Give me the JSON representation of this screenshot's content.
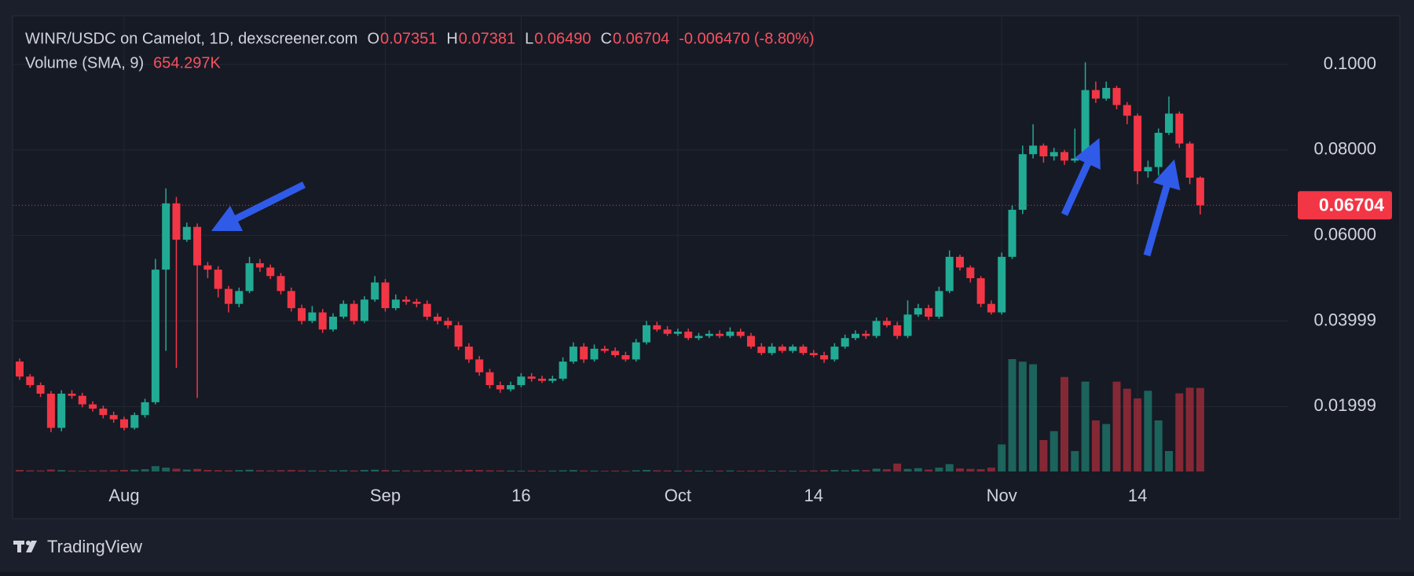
{
  "chart_data": {
    "type": "candlestick",
    "title": "WINR/USDC on Camelot, 1D, dexscreener.com",
    "readout": [
      {
        "key": "O",
        "text": "0.07351"
      },
      {
        "key": "H",
        "text": "0.07381"
      },
      {
        "key": "L",
        "text": "0.06490"
      },
      {
        "key": "C",
        "text": "0.06704"
      }
    ],
    "change_text": "-0.006470 (-8.80%)",
    "volume_title": "Volume (SMA, 9)",
    "volume_text": "654.297K",
    "categories": [
      null,
      null,
      null,
      null,
      null,
      null,
      null,
      null,
      null,
      null,
      "Aug",
      null,
      null,
      null,
      null,
      null,
      null,
      null,
      null,
      null,
      null,
      null,
      null,
      null,
      null,
      null,
      null,
      null,
      null,
      null,
      null,
      null,
      null,
      null,
      null,
      "Sep",
      null,
      null,
      null,
      null,
      null,
      null,
      null,
      null,
      null,
      null,
      null,
      null,
      "16",
      null,
      null,
      null,
      null,
      null,
      null,
      null,
      null,
      null,
      null,
      null,
      null,
      null,
      null,
      "Oct",
      null,
      null,
      null,
      null,
      null,
      null,
      null,
      null,
      null,
      null,
      null,
      null,
      "14",
      null,
      null,
      null,
      null,
      null,
      null,
      null,
      null,
      null,
      null,
      null,
      null,
      null,
      null,
      null,
      null,
      null,
      "Nov",
      null,
      null,
      null,
      null,
      null,
      null,
      null,
      null,
      null,
      null,
      null,
      null,
      "14",
      null,
      null,
      null,
      null,
      null,
      null
    ],
    "open": [
      0.0305,
      0.027,
      0.025,
      0.023,
      0.015,
      0.023,
      0.0225,
      0.0205,
      0.0195,
      0.018,
      0.017,
      0.015,
      0.018,
      0.021,
      0.052,
      0.0675,
      0.059,
      0.062,
      0.053,
      0.052,
      0.0475,
      0.044,
      0.047,
      0.0535,
      0.0525,
      0.0505,
      0.047,
      0.043,
      0.04,
      0.042,
      0.038,
      0.041,
      0.044,
      0.04,
      0.045,
      0.049,
      0.043,
      0.045,
      0.0445,
      0.044,
      0.041,
      0.04,
      0.039,
      0.034,
      0.031,
      0.028,
      0.025,
      0.024,
      0.025,
      0.027,
      0.0265,
      0.026,
      0.0265,
      0.0305,
      0.034,
      0.031,
      0.0335,
      0.033,
      0.032,
      0.031,
      0.035,
      0.039,
      0.038,
      0.037,
      0.0375,
      0.036,
      0.0365,
      0.037,
      0.0365,
      0.0375,
      0.0365,
      0.034,
      0.0325,
      0.034,
      0.033,
      0.034,
      0.0325,
      0.032,
      0.031,
      0.034,
      0.036,
      0.037,
      0.0365,
      0.04,
      0.039,
      0.0365,
      0.0415,
      0.043,
      0.041,
      0.047,
      0.055,
      0.0525,
      0.05,
      0.044,
      0.042,
      0.055,
      0.066,
      0.079,
      0.081,
      0.0785,
      0.0795,
      0.0775,
      0.078,
      0.094,
      0.092,
      0.0945,
      0.0905,
      0.088,
      0.075,
      0.076,
      0.084,
      0.0885,
      0.0815,
      0.07351
    ],
    "high": [
      0.0312,
      0.0276,
      0.0256,
      0.0236,
      0.0238,
      0.0238,
      0.0232,
      0.0212,
      0.0202,
      0.0188,
      0.0176,
      0.0186,
      0.0218,
      0.0545,
      0.071,
      0.069,
      0.063,
      0.0628,
      0.0538,
      0.0528,
      0.0482,
      0.0478,
      0.055,
      0.0545,
      0.0532,
      0.0512,
      0.0478,
      0.0438,
      0.0435,
      0.0428,
      0.0418,
      0.0448,
      0.0448,
      0.0458,
      0.0505,
      0.0498,
      0.0462,
      0.0458,
      0.0452,
      0.0448,
      0.0418,
      0.0408,
      0.0398,
      0.0348,
      0.0318,
      0.0288,
      0.0258,
      0.0258,
      0.0278,
      0.0278,
      0.0272,
      0.0272,
      0.0315,
      0.035,
      0.0348,
      0.0345,
      0.0342,
      0.0338,
      0.0328,
      0.0358,
      0.04,
      0.0398,
      0.0388,
      0.0382,
      0.0382,
      0.0372,
      0.0378,
      0.0378,
      0.0385,
      0.0382,
      0.0372,
      0.0348,
      0.0348,
      0.0345,
      0.0345,
      0.0345,
      0.0332,
      0.0328,
      0.0348,
      0.0368,
      0.0378,
      0.0378,
      0.0408,
      0.0408,
      0.0398,
      0.0448,
      0.044,
      0.0438,
      0.048,
      0.0565,
      0.0555,
      0.053,
      0.0505,
      0.0448,
      0.056,
      0.067,
      0.081,
      0.086,
      0.0815,
      0.0805,
      0.08,
      0.085,
      0.1005,
      0.096,
      0.096,
      0.095,
      0.0912,
      0.0885,
      0.0775,
      0.085,
      0.0925,
      0.089,
      0.082,
      0.07381
    ],
    "low": [
      0.0262,
      0.0244,
      0.0222,
      0.014,
      0.0142,
      0.0218,
      0.0198,
      0.0188,
      0.0172,
      0.0162,
      0.0144,
      0.0146,
      0.0174,
      0.0205,
      0.033,
      0.029,
      0.0585,
      0.022,
      0.05,
      0.0455,
      0.042,
      0.0432,
      0.0465,
      0.0515,
      0.0498,
      0.0462,
      0.0422,
      0.0392,
      0.0395,
      0.0372,
      0.0375,
      0.0405,
      0.0392,
      0.0395,
      0.0445,
      0.0422,
      0.0425,
      0.0438,
      0.0432,
      0.0402,
      0.0392,
      0.0382,
      0.0332,
      0.0302,
      0.0272,
      0.0242,
      0.0232,
      0.0235,
      0.0245,
      0.0258,
      0.0255,
      0.0255,
      0.026,
      0.03,
      0.0302,
      0.0305,
      0.0325,
      0.0315,
      0.0305,
      0.0305,
      0.0345,
      0.0375,
      0.0365,
      0.0365,
      0.0355,
      0.0355,
      0.036,
      0.036,
      0.036,
      0.036,
      0.0335,
      0.032,
      0.032,
      0.0325,
      0.0325,
      0.032,
      0.0315,
      0.0302,
      0.0305,
      0.0335,
      0.0355,
      0.0358,
      0.036,
      0.0385,
      0.0358,
      0.036,
      0.041,
      0.0402,
      0.0405,
      0.0465,
      0.0518,
      0.049,
      0.0432,
      0.0415,
      0.0415,
      0.0545,
      0.065,
      0.078,
      0.077,
      0.0775,
      0.0765,
      0.077,
      0.0775,
      0.091,
      0.0915,
      0.0895,
      0.086,
      0.072,
      0.0735,
      0.074,
      0.0835,
      0.0805,
      0.072,
      0.0649
    ],
    "close": [
      0.027,
      0.025,
      0.023,
      0.015,
      0.023,
      0.0225,
      0.0205,
      0.0195,
      0.018,
      0.017,
      0.015,
      0.018,
      0.021,
      0.052,
      0.0675,
      0.059,
      0.062,
      0.053,
      0.052,
      0.0475,
      0.044,
      0.047,
      0.0535,
      0.0525,
      0.0505,
      0.047,
      0.043,
      0.04,
      0.042,
      0.038,
      0.041,
      0.044,
      0.04,
      0.045,
      0.049,
      0.043,
      0.045,
      0.0445,
      0.044,
      0.041,
      0.04,
      0.039,
      0.034,
      0.031,
      0.028,
      0.025,
      0.024,
      0.025,
      0.027,
      0.0265,
      0.026,
      0.0265,
      0.0305,
      0.034,
      0.031,
      0.0335,
      0.033,
      0.032,
      0.031,
      0.035,
      0.039,
      0.038,
      0.037,
      0.0375,
      0.036,
      0.0365,
      0.037,
      0.0365,
      0.0375,
      0.0365,
      0.034,
      0.0325,
      0.034,
      0.033,
      0.034,
      0.0325,
      0.032,
      0.031,
      0.034,
      0.036,
      0.037,
      0.0365,
      0.04,
      0.039,
      0.0365,
      0.0415,
      0.043,
      0.041,
      0.047,
      0.055,
      0.0525,
      0.05,
      0.044,
      0.042,
      0.055,
      0.066,
      0.079,
      0.081,
      0.0785,
      0.0795,
      0.0775,
      0.078,
      0.094,
      0.092,
      0.0945,
      0.0905,
      0.088,
      0.075,
      0.076,
      0.084,
      0.0885,
      0.0815,
      0.07351,
      0.06704
    ],
    "volume": [
      12000,
      9000,
      8000,
      15000,
      11000,
      7000,
      6000,
      8000,
      9000,
      10000,
      12000,
      14000,
      18000,
      42000,
      30000,
      22000,
      15000,
      20000,
      12000,
      10000,
      9000,
      11000,
      14000,
      9000,
      8000,
      10000,
      11000,
      9000,
      8000,
      7000,
      9000,
      10000,
      8000,
      12000,
      14000,
      11000,
      9000,
      8000,
      7000,
      9000,
      8000,
      7000,
      10000,
      12000,
      11000,
      9000,
      8000,
      7000,
      6000,
      7000,
      6000,
      7000,
      9000,
      11000,
      8000,
      7000,
      6000,
      7000,
      6000,
      9000,
      12000,
      9000,
      8000,
      7000,
      8000,
      7000,
      6000,
      7000,
      8000,
      6000,
      7000,
      8000,
      6000,
      7000,
      6000,
      7000,
      8000,
      10000,
      12000,
      9000,
      14000,
      11000,
      22000,
      18000,
      62000,
      20000,
      26000,
      15000,
      30000,
      58000,
      24000,
      20000,
      18000,
      30000,
      212000,
      880000,
      860000,
      840000,
      246000,
      316000,
      740000,
      160000,
      704000,
      400000,
      372000,
      704000,
      648000,
      572000,
      632000,
      400000,
      160000,
      612000,
      656000,
      654297
    ],
    "up_color": "#22ab94",
    "down_color": "#f23645",
    "ylim": [
      0.0048,
      0.1112
    ],
    "yticks": [
      {
        "value": 0.1,
        "label": "0.1000"
      },
      {
        "value": 0.08,
        "label": "0.08000"
      },
      {
        "value": 0.06,
        "label": "0.06000"
      },
      {
        "value": 0.03999,
        "label": "0.03999"
      },
      {
        "value": 0.01999,
        "label": "0.01999"
      }
    ],
    "grid": true,
    "last_price_line": true
  },
  "footer": {
    "brand": "TradingView"
  }
}
